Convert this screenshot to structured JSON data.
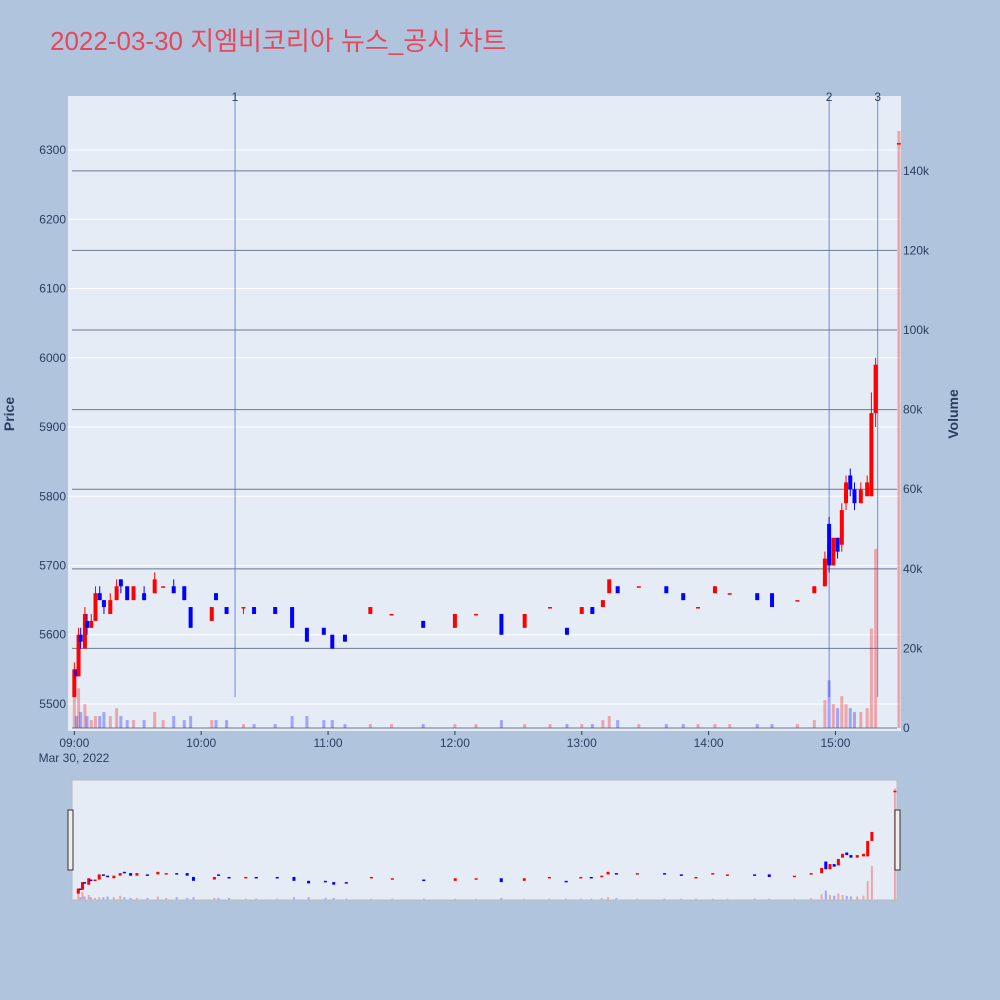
{
  "chart_data": {
    "type": "candlestick",
    "title": "2022-03-30 지엠비코리아 뉴스_공시 차트",
    "y_label": "Price",
    "y2_label": "Volume",
    "x_date_label": "Mar 30, 2022",
    "increasing_color": "#ff0000",
    "decreasing_color": "#0000ff",
    "x": [
      "2022-03-30 09:00",
      "2022-03-30 09:01",
      "2022-03-30 09:02",
      "2022-03-30 09:03",
      "2022-03-30 09:05",
      "2022-03-30 09:06",
      "2022-03-30 09:08",
      "2022-03-30 09:10",
      "2022-03-30 09:12",
      "2022-03-30 09:14",
      "2022-03-30 09:17",
      "2022-03-30 09:20",
      "2022-03-30 09:22",
      "2022-03-30 09:25",
      "2022-03-30 09:28",
      "2022-03-30 09:33",
      "2022-03-30 09:38",
      "2022-03-30 09:42",
      "2022-03-30 09:47",
      "2022-03-30 09:52",
      "2022-03-30 09:55",
      "2022-03-30 10:05",
      "2022-03-30 10:07",
      "2022-03-30 10:12",
      "2022-03-30 10:20",
      "2022-03-30 10:25",
      "2022-03-30 10:35",
      "2022-03-30 10:43",
      "2022-03-30 10:50",
      "2022-03-30 10:58",
      "2022-03-30 11:02",
      "2022-03-30 11:08",
      "2022-03-30 11:20",
      "2022-03-30 11:30",
      "2022-03-30 11:45",
      "2022-03-30 12:00",
      "2022-03-30 12:10",
      "2022-03-30 12:22",
      "2022-03-30 12:33",
      "2022-03-30 12:45",
      "2022-03-30 12:53",
      "2022-03-30 13:00",
      "2022-03-30 13:05",
      "2022-03-30 13:10",
      "2022-03-30 13:13",
      "2022-03-30 13:17",
      "2022-03-30 13:27",
      "2022-03-30 13:40",
      "2022-03-30 13:48",
      "2022-03-30 13:55",
      "2022-03-30 14:03",
      "2022-03-30 14:10",
      "2022-03-30 14:23",
      "2022-03-30 14:30",
      "2022-03-30 14:42",
      "2022-03-30 14:50",
      "2022-03-30 14:55",
      "2022-03-30 14:57",
      "2022-03-30 14:59",
      "2022-03-30 15:01",
      "2022-03-30 15:03",
      "2022-03-30 15:05",
      "2022-03-30 15:07",
      "2022-03-30 15:09",
      "2022-03-30 15:12",
      "2022-03-30 15:15",
      "2022-03-30 15:17",
      "2022-03-30 15:19",
      "2022-03-30 15:30"
    ],
    "open": [
      5510,
      5550,
      5540,
      5600,
      5580,
      5620,
      5610,
      5620,
      5660,
      5650,
      5630,
      5650,
      5680,
      5670,
      5650,
      5660,
      5660,
      5670,
      5670,
      5670,
      5640,
      5620,
      5660,
      5640,
      5640,
      5640,
      5640,
      5640,
      5610,
      5610,
      5600,
      5600,
      5630,
      5630,
      5620,
      5610,
      5630,
      5630,
      5610,
      5640,
      5610,
      5630,
      5640,
      5640,
      5660,
      5670,
      5670,
      5670,
      5660,
      5640,
      5660,
      5660,
      5660,
      5660,
      5650,
      5660,
      5670,
      5760,
      5700,
      5740,
      5730,
      5790,
      5830,
      5810,
      5790,
      5800,
      5800,
      5920,
      6310
    ],
    "high": [
      5560,
      5550,
      5610,
      5610,
      5640,
      5630,
      5630,
      5670,
      5670,
      5650,
      5660,
      5680,
      5680,
      5670,
      5670,
      5670,
      5690,
      5670,
      5680,
      5670,
      5640,
      5640,
      5660,
      5640,
      5640,
      5640,
      5640,
      5640,
      5610,
      5610,
      5600,
      5600,
      5640,
      5630,
      5620,
      5630,
      5630,
      5630,
      5630,
      5640,
      5610,
      5640,
      5640,
      5650,
      5680,
      5670,
      5670,
      5670,
      5660,
      5640,
      5670,
      5660,
      5660,
      5660,
      5650,
      5670,
      5720,
      5770,
      5740,
      5740,
      5790,
      5830,
      5840,
      5820,
      5820,
      5830,
      5950,
      6000,
      6310
    ],
    "low": [
      5510,
      5540,
      5540,
      5580,
      5580,
      5600,
      5610,
      5620,
      5650,
      5630,
      5630,
      5650,
      5660,
      5650,
      5650,
      5650,
      5660,
      5670,
      5660,
      5650,
      5610,
      5620,
      5650,
      5630,
      5630,
      5630,
      5630,
      5610,
      5590,
      5600,
      5580,
      5590,
      5630,
      5630,
      5610,
      5610,
      5630,
      5600,
      5610,
      5640,
      5600,
      5630,
      5630,
      5640,
      5660,
      5660,
      5670,
      5660,
      5650,
      5640,
      5660,
      5660,
      5650,
      5640,
      5650,
      5660,
      5670,
      5690,
      5700,
      5710,
      5720,
      5780,
      5800,
      5780,
      5790,
      5800,
      5800,
      5900,
      6310
    ],
    "close": [
      5550,
      5540,
      5600,
      5590,
      5630,
      5610,
      5620,
      5660,
      5650,
      5640,
      5650,
      5670,
      5670,
      5650,
      5670,
      5650,
      5680,
      5670,
      5660,
      5650,
      5610,
      5640,
      5650,
      5630,
      5640,
      5630,
      5630,
      5610,
      5590,
      5600,
      5580,
      5590,
      5640,
      5630,
      5610,
      5630,
      5630,
      5600,
      5630,
      5640,
      5600,
      5640,
      5630,
      5650,
      5680,
      5660,
      5670,
      5660,
      5650,
      5640,
      5670,
      5660,
      5650,
      5640,
      5650,
      5670,
      5710,
      5700,
      5740,
      5720,
      5780,
      5820,
      5810,
      5790,
      5810,
      5820,
      5920,
      5990,
      6310
    ],
    "volume": [
      8000,
      3000,
      10000,
      4000,
      6000,
      3000,
      2000,
      3000,
      3000,
      4000,
      3000,
      5000,
      3000,
      2000,
      2000,
      2000,
      4000,
      2000,
      3000,
      2000,
      3000,
      2000,
      2000,
      2000,
      1000,
      1000,
      1000,
      3000,
      3000,
      2000,
      2000,
      1000,
      1000,
      1000,
      1000,
      1000,
      1000,
      2000,
      1000,
      1000,
      1000,
      1000,
      1000,
      2000,
      3000,
      2000,
      1000,
      1000,
      1000,
      1000,
      1000,
      1000,
      1000,
      1000,
      1000,
      2000,
      7000,
      12000,
      6000,
      5000,
      8000,
      6000,
      5000,
      4000,
      4000,
      5000,
      25000,
      45000,
      150000
    ],
    "xlim": [
      "2022-03-30 08:57",
      "2022-03-30 15:31"
    ],
    "xticks": [
      {
        "value": "2022-03-30 09:00",
        "label": "09:00"
      },
      {
        "value": "2022-03-30 10:00",
        "label": "10:00"
      },
      {
        "value": "2022-03-30 11:00",
        "label": "11:00"
      },
      {
        "value": "2022-03-30 12:00",
        "label": "12:00"
      },
      {
        "value": "2022-03-30 13:00",
        "label": "13:00"
      },
      {
        "value": "2022-03-30 14:00",
        "label": "14:00"
      },
      {
        "value": "2022-03-30 15:00",
        "label": "15:00"
      }
    ],
    "ylim": [
      5461,
      6378
    ],
    "yticks": [
      5500,
      5600,
      5700,
      5800,
      5900,
      6000,
      6100,
      6200,
      6300
    ],
    "y2lim": [
      -750,
      158800
    ],
    "y2ticks": [
      0,
      {
        "value": 20000,
        "label": "20k"
      },
      {
        "value": 40000,
        "label": "40k"
      },
      {
        "value": 60000,
        "label": "60k"
      },
      {
        "value": 80000,
        "label": "80k"
      },
      {
        "value": 100000,
        "label": "100k"
      },
      {
        "value": 120000,
        "label": "120k"
      },
      {
        "value": 140000,
        "label": "140k"
      }
    ],
    "annotations": [
      {
        "x": "2022-03-30 10:16",
        "text": "1"
      },
      {
        "x": "2022-03-30 14:57",
        "text": "2"
      },
      {
        "x": "2022-03-30 15:20",
        "text": "3"
      }
    ]
  }
}
